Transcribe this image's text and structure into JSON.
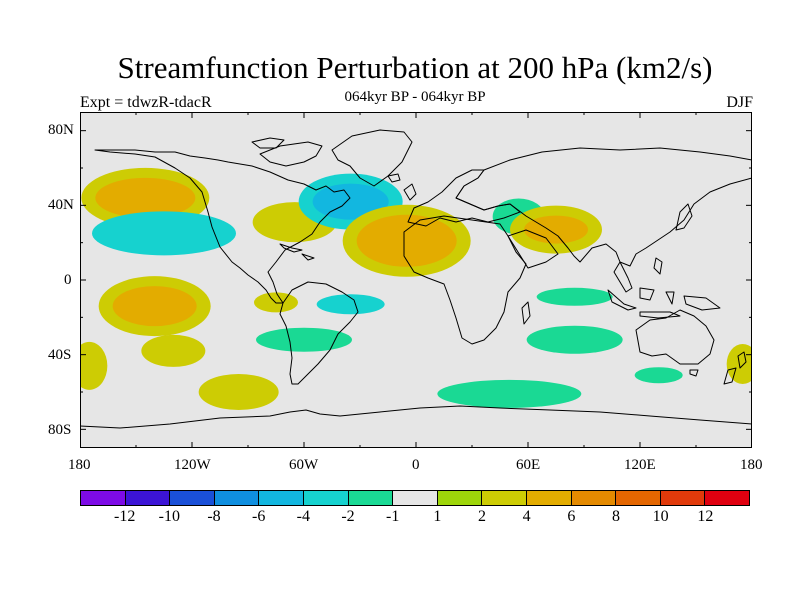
{
  "header": {
    "title": "Streamfunction Perturbation at 200 hPa (km2/s)",
    "subtitle": "064kyr BP - 064kyr BP",
    "left_label": "Expt = tdwzR-tdacR",
    "right_label": "DJF"
  },
  "map": {
    "projection": "cylindrical equidistant",
    "lon_range": [
      -180,
      180
    ],
    "lat_range": [
      -90,
      90
    ],
    "background_color": "#e6e6e6",
    "coastline_color": "#000000",
    "lat_ticks": [
      "80N",
      "40N",
      "0",
      "40S",
      "80S"
    ],
    "lon_ticks": [
      "180",
      "120W",
      "60W",
      "0",
      "60E",
      "120E",
      "180"
    ]
  },
  "colorbar": {
    "colors": [
      "#7d0be6",
      "#3c14d6",
      "#1a50d8",
      "#0f8fe0",
      "#12b7e0",
      "#16d2cf",
      "#1ad994",
      "#e6e6e6",
      "#9ed60a",
      "#cdcc04",
      "#e3ac00",
      "#e48a00",
      "#e46600",
      "#e13a0b",
      "#e00010"
    ],
    "labels": [
      "-12",
      "-10",
      "-8",
      "-6",
      "-4",
      "-2",
      "-1",
      "1",
      "2",
      "4",
      "6",
      "8",
      "10",
      "12"
    ]
  },
  "chart_data": {
    "type": "heatmap",
    "variable": "Streamfunction Perturbation at 200 hPa",
    "units": "km2/s",
    "season": "DJF",
    "levels": [
      -12,
      -10,
      -8,
      -6,
      -4,
      -2,
      -1,
      1,
      2,
      4,
      6,
      8,
      10,
      12
    ],
    "features": [
      {
        "lon": -145,
        "lat": 44,
        "level": 4
      },
      {
        "lon": -135,
        "lat": 25,
        "level": -2
      },
      {
        "lon": -140,
        "lat": -14,
        "level": 4
      },
      {
        "lon": -65,
        "lat": 31,
        "level": 2
      },
      {
        "lon": -75,
        "lat": -12,
        "level": 2
      },
      {
        "lon": -35,
        "lat": 42,
        "level": -4
      },
      {
        "lon": -5,
        "lat": 21,
        "level": 4
      },
      {
        "lon": 55,
        "lat": 34,
        "level": -1
      },
      {
        "lon": 75,
        "lat": 27,
        "level": 4
      },
      {
        "lon": -35,
        "lat": -13,
        "level": -2
      },
      {
        "lon": -60,
        "lat": -32,
        "level": -1
      },
      {
        "lon": -130,
        "lat": -38,
        "level": 2
      },
      {
        "lon": -95,
        "lat": -60,
        "level": 2
      },
      {
        "lon": 50,
        "lat": -61,
        "level": -1
      },
      {
        "lon": 85,
        "lat": -32,
        "level": -1
      },
      {
        "lon": 85,
        "lat": -9,
        "level": -1
      },
      {
        "lon": 130,
        "lat": -51,
        "level": -1
      },
      {
        "lon": 175,
        "lat": -45,
        "level": 2
      },
      {
        "lon": -175,
        "lat": -46,
        "level": 2
      }
    ]
  }
}
